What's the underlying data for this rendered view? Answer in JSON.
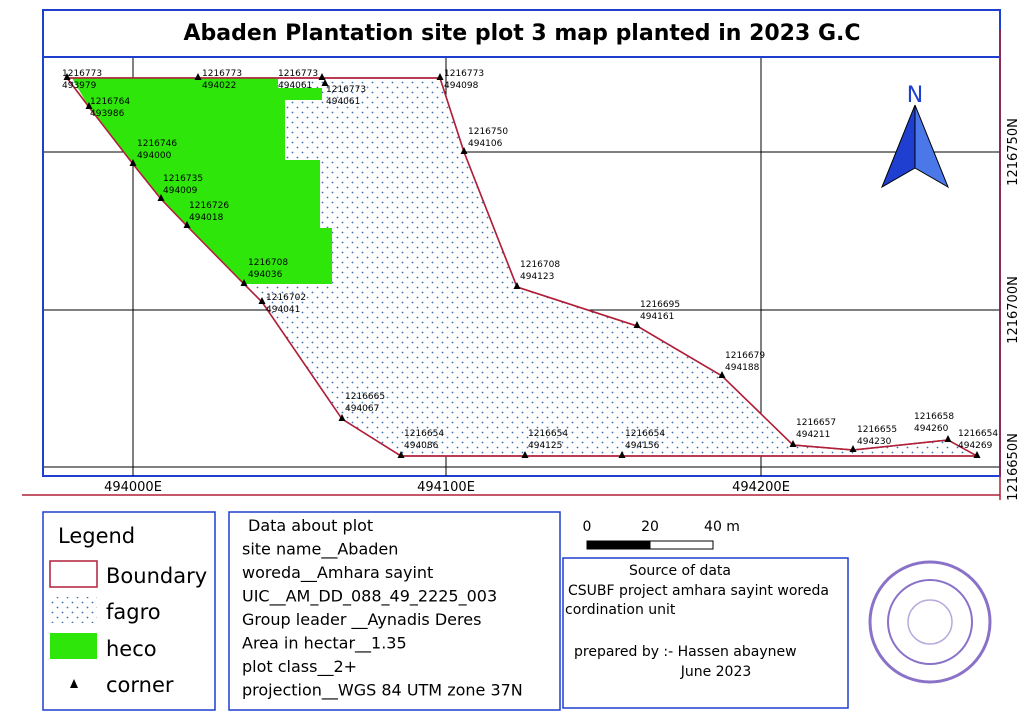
{
  "title": "Abaden Plantation site plot 3 map planted in 2023 G.C",
  "map": {
    "north": "N",
    "x_grid_labels": [
      "494000E",
      "494100E",
      "494200E"
    ],
    "y_grid_labels": [
      "1216750N",
      "1216700N",
      "1216650N"
    ],
    "points": [
      {
        "northing": "1216773",
        "easting": "493979"
      },
      {
        "northing": "1216764",
        "easting": "493986"
      },
      {
        "northing": "1216773",
        "easting": "494022"
      },
      {
        "northing": "1216773",
        "easting": "494061"
      },
      {
        "northing": "1216773",
        "easting": "494061"
      },
      {
        "northing": "1216773",
        "easting": "494098"
      },
      {
        "northing": "1216750",
        "easting": "494106"
      },
      {
        "northing": "1216746",
        "easting": "494000"
      },
      {
        "northing": "1216735",
        "easting": "494009"
      },
      {
        "northing": "1216726",
        "easting": "494018"
      },
      {
        "northing": "1216708",
        "easting": "494036"
      },
      {
        "northing": "1216708",
        "easting": "494123"
      },
      {
        "northing": "1216702",
        "easting": "494041"
      },
      {
        "northing": "1216695",
        "easting": "494161"
      },
      {
        "northing": "1216679",
        "easting": "494188"
      },
      {
        "northing": "1216665",
        "easting": "494067"
      },
      {
        "northing": "1216657",
        "easting": "494211"
      },
      {
        "northing": "1216655",
        "easting": "494230"
      },
      {
        "northing": "1216658",
        "easting": "494260"
      },
      {
        "northing": "1216654",
        "easting": "494269"
      },
      {
        "northing": "1216654",
        "easting": "494086"
      },
      {
        "northing": "1216654",
        "easting": "494125"
      },
      {
        "northing": "1216654",
        "easting": "494156"
      }
    ]
  },
  "legend": {
    "title": "Legend",
    "items": [
      "Boundary",
      "fagro",
      "heco",
      "corner"
    ]
  },
  "plot_info": {
    "lines": [
      "Data about plot",
      "site name__Abaden",
      "woreda__Amhara sayint",
      "UIC__AM_DD_088_49_2225_003",
      "Group leader __Aynadis Deres",
      "Area in hectar__1.35",
      "plot class__2+",
      "projection__WGS 84 UTM zone 37N"
    ]
  },
  "scale": {
    "labels": [
      "0",
      "20",
      "40 m"
    ]
  },
  "source": {
    "lines": [
      "Source of data",
      "CSUBF project amhara sayint woreda",
      "cordination unit",
      "prepared by :- Hassen abaynew",
      "June 2023"
    ]
  }
}
